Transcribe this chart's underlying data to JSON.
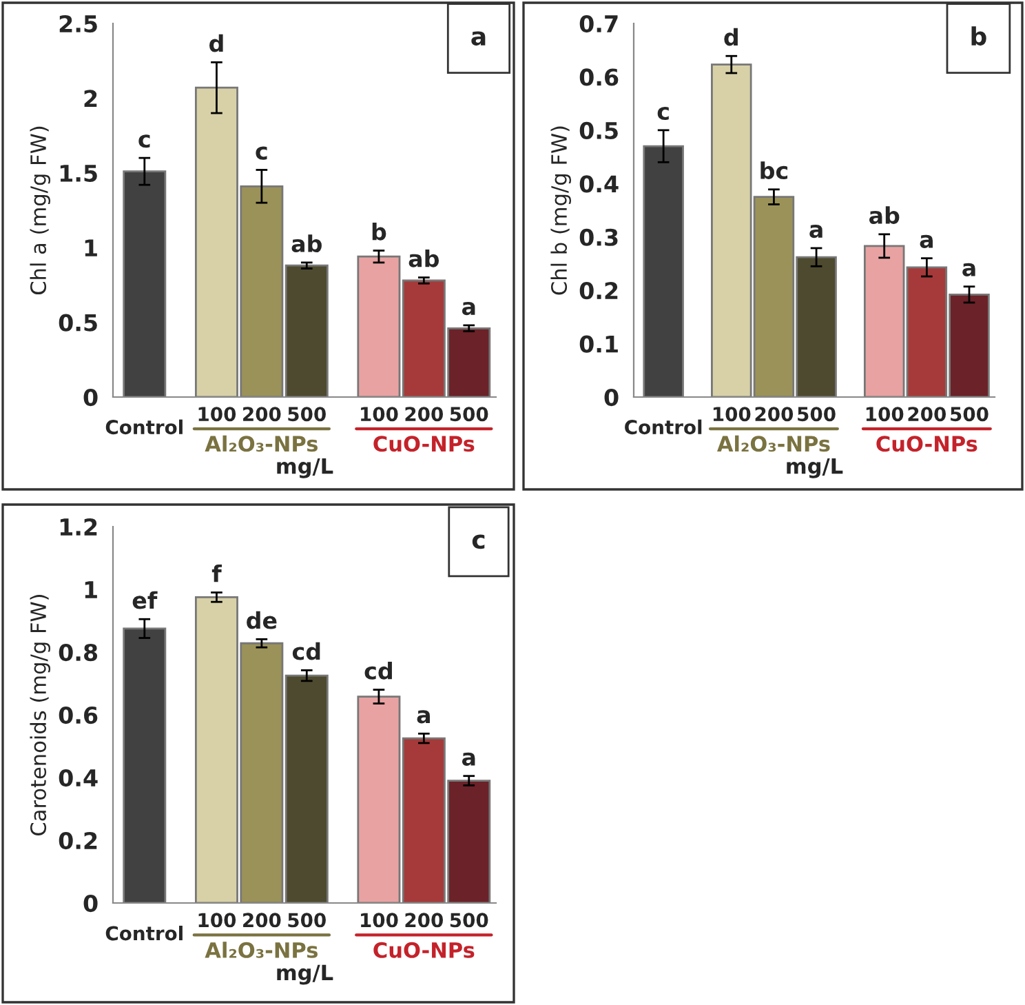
{
  "chart_data": [
    {
      "type": "bar",
      "title": "a",
      "ylabel": "Chl a (mg/g FW)",
      "xlabel": "mg/L",
      "categories": [
        "Control",
        "100",
        "200",
        "500",
        "100",
        "200",
        "500"
      ],
      "values": [
        1.51,
        2.07,
        1.41,
        0.88,
        0.94,
        0.78,
        0.46
      ],
      "errors": [
        0.09,
        0.17,
        0.11,
        0.02,
        0.04,
        0.02,
        0.02
      ],
      "value_labels": [
        "c",
        "d",
        "c",
        "ab",
        "b",
        "ab",
        "a"
      ],
      "colors": [
        "#414141",
        "#d8d1a8",
        "#9b9259",
        "#4d4a2f",
        "#e8a2a2",
        "#a63a3a",
        "#6b2228"
      ],
      "ylim": [
        0,
        2.5
      ],
      "yticks": [
        0,
        0.5,
        1,
        1.5,
        2,
        2.5
      ],
      "annotations": [
        "Al₂O₃-NPs",
        "CuO-NPs"
      ]
    },
    {
      "type": "bar",
      "title": "b",
      "ylabel": "Chl b (mg/g FW)",
      "xlabel": "mg/L",
      "categories": [
        "Control",
        "100",
        "200",
        "500",
        "100",
        "200",
        "500"
      ],
      "values": [
        0.47,
        0.623,
        0.375,
        0.262,
        0.283,
        0.243,
        0.192
      ],
      "errors": [
        0.03,
        0.016,
        0.014,
        0.017,
        0.022,
        0.017,
        0.015
      ],
      "value_labels": [
        "c",
        "d",
        "bc",
        "a",
        "ab",
        "a",
        "a"
      ],
      "colors": [
        "#414141",
        "#d8d1a8",
        "#9b9259",
        "#4d4a2f",
        "#e8a2a2",
        "#a63a3a",
        "#6b2228"
      ],
      "ylim": [
        0,
        0.7
      ],
      "yticks": [
        0,
        0.1,
        0.2,
        0.3,
        0.4,
        0.5,
        0.6,
        0.7
      ],
      "annotations": [
        "Al₂O₃-NPs",
        "CuO-NPs"
      ]
    },
    {
      "type": "bar",
      "title": "c",
      "ylabel": "Carotenoids (mg/g FW)",
      "xlabel": "mg/L",
      "categories": [
        "Control",
        "100",
        "200",
        "500",
        "100",
        "200",
        "500"
      ],
      "values": [
        0.875,
        0.975,
        0.828,
        0.725,
        0.658,
        0.525,
        0.39
      ],
      "errors": [
        0.03,
        0.015,
        0.013,
        0.017,
        0.022,
        0.015,
        0.015
      ],
      "value_labels": [
        "ef",
        "f",
        "de",
        "cd",
        "cd",
        "a",
        "a"
      ],
      "colors": [
        "#414141",
        "#d8d1a8",
        "#9b9259",
        "#4d4a2f",
        "#e8a2a2",
        "#a63a3a",
        "#6b2228"
      ],
      "ylim": [
        0,
        1.2
      ],
      "yticks": [
        0,
        0.2,
        0.4,
        0.6,
        0.8,
        1,
        1.2
      ],
      "annotations": [
        "Al₂O₃-NPs",
        "CuO-NPs"
      ]
    }
  ]
}
